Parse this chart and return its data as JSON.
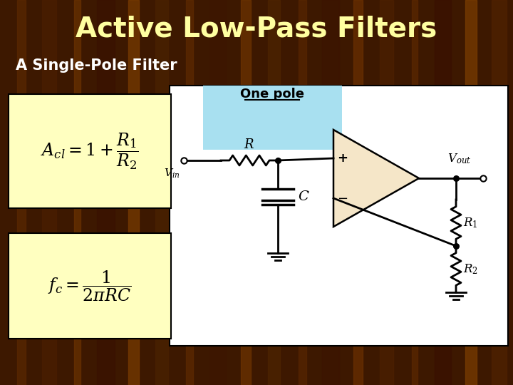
{
  "title": "Active Low-Pass Filters",
  "subtitle": "A Single-Pole Filter",
  "title_color": "#FFFFA0",
  "subtitle_color": "#FFFFFF",
  "bg_color": "#3d1800",
  "one_pole_label": "One pole",
  "one_pole_bg": "#A8E0F0",
  "formula_box_color": "#FFFFC0",
  "circuit_bg": "#FFFFFF",
  "opamp_fill": "#F5E6C8",
  "lc": "#000000",
  "grain_colors": [
    "#5a2800",
    "#4a1e00",
    "#6a3200",
    "#3a1200",
    "#7a3c00",
    "#4a2200",
    "#5e2a00",
    "#3e1600",
    "#6e3400",
    "#4e2400",
    "#582600",
    "#3c1400",
    "#6c3000",
    "#4c2000",
    "#5c2800",
    "#3a1000",
    "#7c3e00",
    "#502200"
  ],
  "grain_widths": [
    12,
    20,
    9,
    25,
    15,
    18,
    10,
    22,
    14,
    17,
    11,
    24,
    13,
    19,
    8,
    23,
    16,
    21
  ]
}
